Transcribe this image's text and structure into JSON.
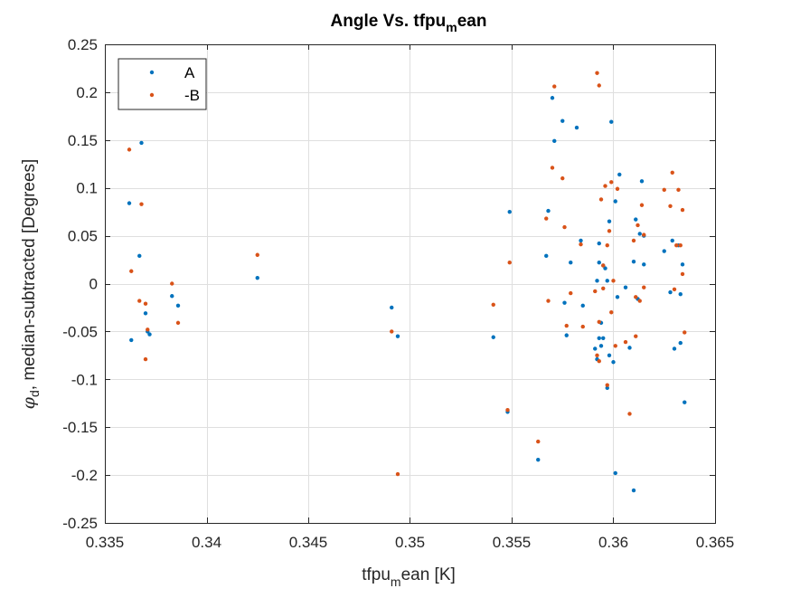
{
  "chart_data": {
    "type": "scatter",
    "title": "Angle Vs. tfpu",
    "title_sub": "m",
    "title_tail": "ean",
    "xlabel": "tfpu",
    "xlabel_sub": "m",
    "xlabel_tail": "ean [K]",
    "ylabel_symbol": "φ",
    "ylabel_sub": "d",
    "ylabel_tail": ", median-subtracted [Degrees]",
    "xlim": [
      0.335,
      0.365
    ],
    "ylim": [
      -0.25,
      0.25
    ],
    "xticks": [
      0.335,
      0.34,
      0.345,
      0.35,
      0.355,
      0.36,
      0.365
    ],
    "xtick_labels": [
      "0.335",
      "0.34",
      "0.345",
      "0.35",
      "0.355",
      "0.36",
      "0.365"
    ],
    "yticks": [
      -0.25,
      -0.2,
      -0.15,
      -0.1,
      -0.05,
      0,
      0.05,
      0.1,
      0.15,
      0.2,
      0.25
    ],
    "ytick_labels": [
      "-0.25",
      "-0.2",
      "-0.15",
      "-0.1",
      "-0.05",
      "0",
      "0.05",
      "0.1",
      "0.15",
      "0.2",
      "0.25"
    ],
    "grid": true,
    "legend_position": "top-left",
    "series": [
      {
        "name": "A",
        "color": "#0072BD",
        "points": [
          [
            0.3362,
            0.084
          ],
          [
            0.3363,
            -0.059
          ],
          [
            0.3367,
            0.029
          ],
          [
            0.3368,
            0.147
          ],
          [
            0.337,
            -0.031
          ],
          [
            0.3371,
            -0.05
          ],
          [
            0.3372,
            -0.053
          ],
          [
            0.3383,
            -0.013
          ],
          [
            0.3386,
            -0.023
          ],
          [
            0.3425,
            0.006
          ],
          [
            0.3491,
            -0.025
          ],
          [
            0.3494,
            -0.055
          ],
          [
            0.3541,
            -0.056
          ],
          [
            0.3548,
            -0.134
          ],
          [
            0.3549,
            0.075
          ],
          [
            0.3563,
            -0.184
          ],
          [
            0.3567,
            0.029
          ],
          [
            0.3568,
            0.076
          ],
          [
            0.357,
            0.194
          ],
          [
            0.3571,
            0.149
          ],
          [
            0.3575,
            0.17
          ],
          [
            0.3576,
            -0.02
          ],
          [
            0.3577,
            -0.054
          ],
          [
            0.3579,
            0.022
          ],
          [
            0.3582,
            0.163
          ],
          [
            0.3584,
            0.045
          ],
          [
            0.3585,
            -0.023
          ],
          [
            0.3591,
            -0.068
          ],
          [
            0.3592,
            0.003
          ],
          [
            0.3592,
            -0.079
          ],
          [
            0.3593,
            0.022
          ],
          [
            0.3593,
            -0.057
          ],
          [
            0.3593,
            0.042
          ],
          [
            0.3594,
            -0.041
          ],
          [
            0.3594,
            -0.065
          ],
          [
            0.3595,
            -0.057
          ],
          [
            0.3595,
            0.019
          ],
          [
            0.3596,
            0.016
          ],
          [
            0.3597,
            0.003
          ],
          [
            0.3597,
            -0.109
          ],
          [
            0.3598,
            -0.075
          ],
          [
            0.3598,
            0.065
          ],
          [
            0.3599,
            0.169
          ],
          [
            0.36,
            -0.082
          ],
          [
            0.3601,
            0.086
          ],
          [
            0.3601,
            -0.198
          ],
          [
            0.3602,
            -0.014
          ],
          [
            0.3603,
            0.114
          ],
          [
            0.3606,
            -0.004
          ],
          [
            0.3608,
            -0.067
          ],
          [
            0.361,
            0.023
          ],
          [
            0.361,
            -0.216
          ],
          [
            0.3611,
            0.067
          ],
          [
            0.3612,
            -0.016
          ],
          [
            0.3613,
            0.052
          ],
          [
            0.3614,
            0.107
          ],
          [
            0.3615,
            0.02
          ],
          [
            0.3615,
            0.05
          ],
          [
            0.3625,
            0.034
          ],
          [
            0.3628,
            -0.009
          ],
          [
            0.3629,
            0.045
          ],
          [
            0.363,
            -0.068
          ],
          [
            0.3632,
            0.04
          ],
          [
            0.3633,
            -0.011
          ],
          [
            0.3633,
            -0.062
          ],
          [
            0.3634,
            0.02
          ],
          [
            0.3635,
            -0.124
          ]
        ]
      },
      {
        "name": "-B",
        "color": "#D95319",
        "points": [
          [
            0.3362,
            0.14
          ],
          [
            0.3363,
            0.013
          ],
          [
            0.3367,
            -0.018
          ],
          [
            0.3368,
            0.083
          ],
          [
            0.337,
            -0.021
          ],
          [
            0.337,
            -0.079
          ],
          [
            0.3371,
            -0.048
          ],
          [
            0.3383,
            0.0
          ],
          [
            0.3386,
            -0.041
          ],
          [
            0.3425,
            0.03
          ],
          [
            0.3491,
            -0.05
          ],
          [
            0.3494,
            -0.199
          ],
          [
            0.3541,
            -0.022
          ],
          [
            0.3548,
            -0.132
          ],
          [
            0.3549,
            0.022
          ],
          [
            0.3563,
            -0.165
          ],
          [
            0.3567,
            0.068
          ],
          [
            0.3568,
            -0.018
          ],
          [
            0.357,
            0.121
          ],
          [
            0.3571,
            0.206
          ],
          [
            0.3575,
            0.11
          ],
          [
            0.3576,
            0.059
          ],
          [
            0.3577,
            -0.044
          ],
          [
            0.3579,
            -0.01
          ],
          [
            0.3584,
            0.041
          ],
          [
            0.3585,
            -0.045
          ],
          [
            0.3591,
            -0.008
          ],
          [
            0.3592,
            0.22
          ],
          [
            0.3592,
            -0.075
          ],
          [
            0.3593,
            0.207
          ],
          [
            0.3593,
            -0.04
          ],
          [
            0.3593,
            -0.081
          ],
          [
            0.3594,
            0.088
          ],
          [
            0.3595,
            0.019
          ],
          [
            0.3595,
            -0.005
          ],
          [
            0.3596,
            0.102
          ],
          [
            0.3597,
            -0.106
          ],
          [
            0.3597,
            0.04
          ],
          [
            0.3598,
            0.055
          ],
          [
            0.3599,
            0.106
          ],
          [
            0.3599,
            -0.03
          ],
          [
            0.36,
            0.003
          ],
          [
            0.3601,
            -0.065
          ],
          [
            0.3602,
            0.099
          ],
          [
            0.3606,
            -0.061
          ],
          [
            0.3608,
            -0.136
          ],
          [
            0.361,
            0.045
          ],
          [
            0.3611,
            -0.014
          ],
          [
            0.3611,
            -0.055
          ],
          [
            0.3612,
            0.061
          ],
          [
            0.3613,
            -0.018
          ],
          [
            0.3614,
            0.082
          ],
          [
            0.3615,
            0.051
          ],
          [
            0.3615,
            -0.004
          ],
          [
            0.3625,
            0.098
          ],
          [
            0.3628,
            0.081
          ],
          [
            0.3629,
            0.116
          ],
          [
            0.363,
            -0.006
          ],
          [
            0.3631,
            0.04
          ],
          [
            0.3632,
            0.098
          ],
          [
            0.3633,
            0.04
          ],
          [
            0.3634,
            0.01
          ],
          [
            0.3634,
            0.077
          ],
          [
            0.3635,
            -0.051
          ]
        ]
      }
    ]
  }
}
